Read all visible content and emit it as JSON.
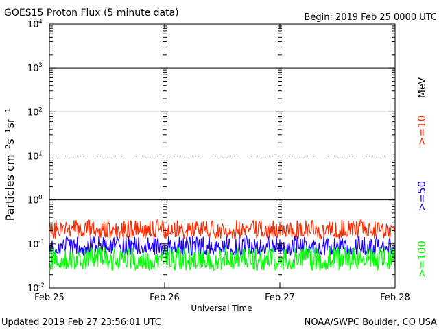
{
  "header": {
    "title": "GOES15 Proton Flux (5 minute data)",
    "begin": "Begin: 2019 Feb 25 0000 UTC"
  },
  "footer": {
    "updated": "Updated 2019 Feb 27 23:56:01 UTC",
    "credit": "NOAA/SWPC Boulder, CO USA"
  },
  "chart_data": {
    "type": "line",
    "title": "GOES15 Proton Flux (5 minute data)",
    "xlabel": "Universal Time",
    "ylabel": "Particles cm⁻²s⁻¹sr⁻¹",
    "y_scale": "log",
    "ylim": [
      0.01,
      10000
    ],
    "x_ticks": [
      "Feb 25",
      "Feb 26",
      "Feb 27",
      "Feb 28"
    ],
    "y_ticks": [
      {
        "base": "10",
        "exp": "4",
        "value": 10000
      },
      {
        "base": "10",
        "exp": "3",
        "value": 1000
      },
      {
        "base": "10",
        "exp": "2",
        "value": 100
      },
      {
        "base": "10",
        "exp": "1",
        "value": 10
      },
      {
        "base": "10",
        "exp": "0",
        "value": 1
      },
      {
        "base": "10",
        "exp": "-1",
        "value": 0.1
      },
      {
        "base": "10",
        "exp": "-2",
        "value": 0.01
      }
    ],
    "threshold_lines": [
      {
        "value": 1000,
        "style": "solid"
      },
      {
        "value": 100,
        "style": "solid"
      },
      {
        "value": 10,
        "style": "dashed"
      },
      {
        "value": 1,
        "style": "solid"
      }
    ],
    "unit_label": "MeV",
    "series": [
      {
        "name": ">=10",
        "color": "#ff2a00",
        "typical_value": 0.2,
        "range": [
          0.13,
          0.35
        ]
      },
      {
        "name": ">=50",
        "color": "#1e00ff",
        "typical_value": 0.08,
        "range": [
          0.055,
          0.15
        ]
      },
      {
        "name": ">=100",
        "color": "#00ff00",
        "typical_value": 0.038,
        "range": [
          0.025,
          0.085
        ]
      }
    ]
  }
}
